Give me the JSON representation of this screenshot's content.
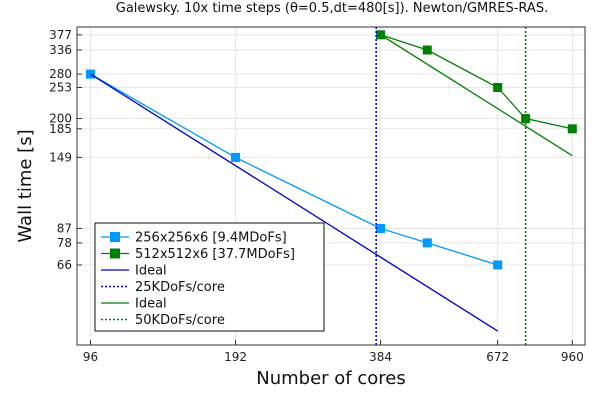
{
  "chart_data": {
    "type": "line",
    "title": "Galewsky. 10x time steps (θ=0.5,dt=480[s]). Newton/GMRES-RAS.",
    "xlabel": "Number of cores",
    "ylabel": "Wall time [s]",
    "x_scale": "log",
    "y_scale": "log",
    "xlim": [
      90,
      1020
    ],
    "ylim": [
      36,
      400
    ],
    "x_ticks": [
      96,
      192,
      384,
      672,
      960
    ],
    "y_ticks": [
      66,
      78,
      87,
      149,
      185,
      200,
      253,
      280,
      336,
      377
    ],
    "grid": true,
    "legend_position": "bottom-left",
    "series": [
      {
        "name": "256x256x6 [9.4MDoFs]",
        "style": "line-square",
        "color": "#009AFA",
        "x": [
          96,
          192,
          384,
          480,
          672
        ],
        "y": [
          280,
          149,
          87,
          78,
          66
        ]
      },
      {
        "name": "512x512x6 [37.7MDoFs]",
        "style": "line-square",
        "color": "#008000",
        "x": [
          384,
          480,
          672,
          768,
          960
        ],
        "y": [
          377,
          336,
          253,
          200,
          185
        ]
      },
      {
        "name": "Ideal",
        "style": "line",
        "color": "#0000CC",
        "x": [
          96,
          672
        ],
        "y": [
          280,
          40
        ]
      },
      {
        "name": "25KDoFs/core",
        "style": "vline-dotted",
        "color": "#0000FF",
        "x": [
          376,
          376
        ]
      },
      {
        "name": "Ideal",
        "style": "line",
        "color": "#008000",
        "x": [
          384,
          960
        ],
        "y": [
          377,
          151
        ]
      },
      {
        "name": "50KDoFs/core",
        "style": "vline-dotted",
        "color": "#008000",
        "x": [
          768,
          768
        ]
      }
    ]
  }
}
